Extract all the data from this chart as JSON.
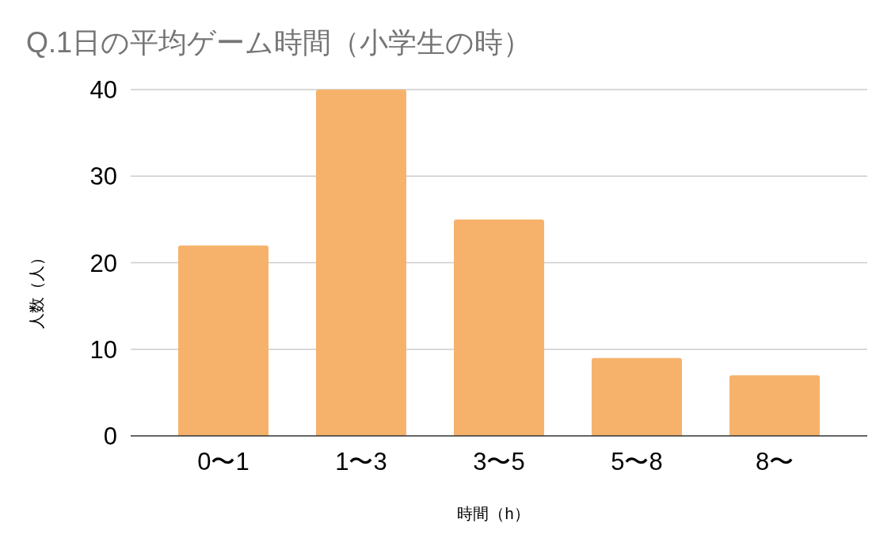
{
  "chart_data": {
    "type": "bar",
    "title": "Q.1日の平均ゲーム時間（小学生の時）",
    "xlabel": "時間（h）",
    "ylabel": "人数（人）",
    "categories": [
      "0〜1",
      "1〜3",
      "3〜5",
      "5〜8",
      "8〜"
    ],
    "values": [
      22,
      40,
      25,
      9,
      7
    ],
    "color": "#f6b26b",
    "ylim": [
      0,
      40
    ],
    "yticks": [
      0,
      10,
      20,
      30,
      40
    ],
    "grid": "y"
  }
}
